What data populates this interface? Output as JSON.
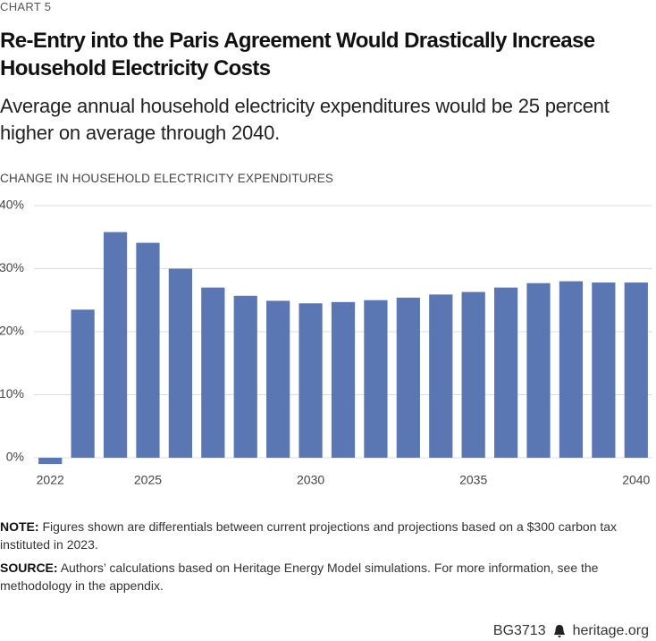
{
  "chart_data": {
    "type": "bar",
    "kicker": "CHART 5",
    "title": "Re-Entry into the Paris Agreement Would Drastically Increase Household Electricity Costs",
    "subtitle": "Average annual household electricity expenditures would be 25 percent higher on average through 2040.",
    "y_label": "CHANGE IN HOUSEHOLD ELECTRICITY EXPENDITURES",
    "categories": [
      "2022",
      null,
      null,
      "2025",
      null,
      null,
      null,
      null,
      "2030",
      null,
      null,
      null,
      null,
      "2035",
      null,
      null,
      null,
      null,
      "2040"
    ],
    "values": [
      -1,
      23.5,
      35.8,
      34.1,
      30,
      27,
      25.7,
      24.9,
      24.5,
      24.7,
      25,
      25.4,
      25.9,
      26.3,
      27,
      27.7,
      28,
      27.8,
      27.8
    ],
    "color": "#5b77b3",
    "ylim": [
      -1.5,
      40
    ],
    "yticks": [
      {
        "value": 0,
        "label": "0%"
      },
      {
        "value": 10,
        "label": "10%"
      },
      {
        "value": 20,
        "label": "20%"
      },
      {
        "value": 30,
        "label": "30%"
      },
      {
        "value": 40,
        "label": "40%"
      }
    ],
    "grid": true,
    "note_label": "NOTE:",
    "note": "Figures shown are differentials between current projections and projections based on a $300 carbon tax instituted in 2023.",
    "source_label": "SOURCE:",
    "source": "Authors’ calculations based on Heritage Energy Model simulations. For more information, see the methodology in the appendix.",
    "report_id": "BG3713",
    "site": "heritage.org"
  }
}
